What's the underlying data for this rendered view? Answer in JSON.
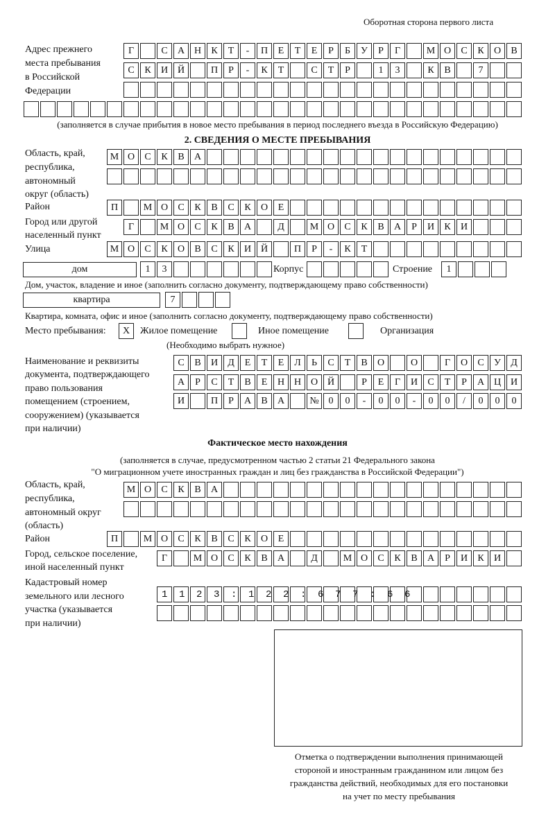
{
  "header": {
    "page_side": "Оборотная сторона первого листа"
  },
  "prev_address": {
    "label": [
      "Адрес прежнего",
      "места пребывания",
      "в Российской",
      "Федерации"
    ],
    "rows": [
      "Г САНКТ-ПЕТЕРБУРГ МОСКОВ",
      "СКИЙ ПР-КТ СТР 13 КВ 7  ",
      "                        ",
      "                              "
    ],
    "note": "(заполняется в случае прибытия в новое место пребывания в период последнего въезда в Российскую Федерацию)"
  },
  "section2": {
    "title": "2. СВЕДЕНИЯ О МЕСТЕ ПРЕБЫВАНИЯ",
    "region_label": [
      "Область, край,",
      "республика,",
      "автономный",
      "округ (область)"
    ],
    "region_rows": [
      "МОСКВА                   ",
      "                         "
    ],
    "district_label": "Район",
    "district_row": "П МОСКВСКОЕ              ",
    "city_label": [
      "Город или другой",
      "населенный пункт"
    ],
    "city_row": "Г МОСКВА Д МОСКВАРИКИ   ",
    "street_label": "Улица",
    "street_row": "МОСКОВСКИЙ ПР-КТ         ",
    "house_type": "дом",
    "house_row": "13      ",
    "korpus_label": "Корпус",
    "korpus_row": "     ",
    "building_label": "Строение",
    "building_row": "1   ",
    "house_note": "Дом, участок, владение и иное (заполнить согласно документу, подтверждающему право собственности)",
    "flat_type": "квартира",
    "flat_row": "7   ",
    "flat_note": "Квартира, комната, офис и иное (заполнить согласно документу, подтверждающему право собственности)",
    "place_label": "Место пребывания:",
    "place_options": [
      {
        "label": "Жилое помещение",
        "mark": "X"
      },
      {
        "label": "Иное помещение",
        "mark": ""
      },
      {
        "label": "Организация",
        "mark": ""
      }
    ],
    "place_note": "(Необходимо выбрать нужное)",
    "doc_label": [
      "Наименование и реквизиты",
      "документа, подтверждающего",
      "право пользования",
      "помещением (строением,",
      "сооружением) (указывается",
      "при наличии)"
    ],
    "doc_rows": [
      "СВИДЕТЕЛЬСТВО О ГОСУД",
      "АРСТВЕННОЙ РЕГИСТРАЦИ",
      "И ПРАВА №00-00-00/000"
    ]
  },
  "actual": {
    "title": "Фактическое место нахождения",
    "subtitle": [
      "(заполняется в случае, предусмотренном частью 2 статьи 21 Федерального закона",
      "\"О миграционном учете иностранных граждан и лиц без гражданства в Российской Федерации\")"
    ],
    "region_label": [
      "Область, край,",
      "республика,",
      "автономный округ",
      "(область)"
    ],
    "region_rows": [
      "МОСКВА                  ",
      "                        "
    ],
    "district_label": "Район",
    "district_row": "П МОСКВСКОЕ              ",
    "city_label": [
      "Город, сельское поселение,",
      "иной населенный пункт"
    ],
    "city_row": "Г МОСКВА Д МОСКВАРИКИ ",
    "cadastre_label": [
      "Кадастровый номер",
      "земельного или лесного",
      "участка (указывается",
      "при наличии)"
    ],
    "cadastre_rows": [
      "1123:122:677:66       ",
      "                      "
    ]
  },
  "stamp": {
    "caption": [
      "Отметка о подтверждении выполнения принимающей",
      "стороной и иностранным гражданином или лицом без",
      "гражданства действий, необходимых для его постановки",
      "на учет по месту пребывания"
    ]
  }
}
